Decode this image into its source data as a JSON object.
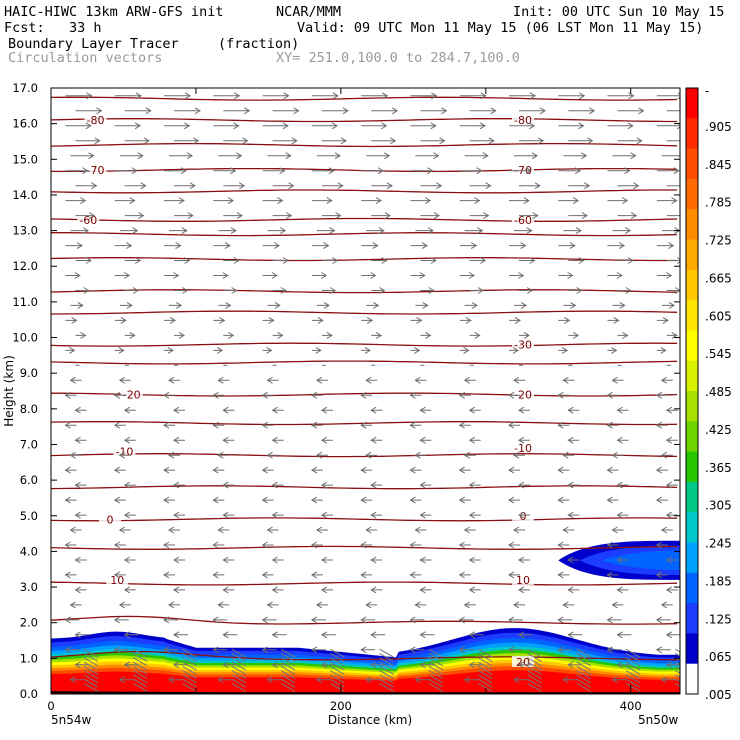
{
  "header": {
    "model": "HAIC-HIWC 13km ARW-GFS init",
    "org": "NCAR/MMM",
    "init": "Init: 00 UTC Sun 10 May 15",
    "fcst": "Fcst:   33 h",
    "valid": "Valid: 09 UTC Mon 11 May 15 (06 LST Mon 11 May 15)",
    "field": "Boundary Layer Tracer",
    "units": "(fraction)",
    "vectors": "Circulation vectors",
    "xy": "XY= 251.0,100.0 to 284.7,100.0"
  },
  "chart_data": {
    "type": "heatmap",
    "ylabel": "Height (km)",
    "xlabel": "Distance (km)",
    "ylim": [
      0,
      17
    ],
    "xlim": [
      0,
      434
    ],
    "y_ticks": [
      "0.0",
      "1.0",
      "2.0",
      "3.0",
      "4.0",
      "5.0",
      "6.0",
      "7.0",
      "8.0",
      "9.0",
      "10.0",
      "11.0",
      "12.0",
      "13.0",
      "14.0",
      "15.0",
      "16.0",
      "17.0"
    ],
    "x_ticks": [
      "0",
      "200",
      "400"
    ],
    "x_end_labels": {
      "left": "5n54w",
      "right": "5n50w"
    },
    "colorbar": {
      "labels": [
        "-",
        ".905",
        ".845",
        ".785",
        ".725",
        ".665",
        ".605",
        ".545",
        ".485",
        ".425",
        ".365",
        ".305",
        ".245",
        ".185",
        ".125",
        ".065",
        ".005"
      ],
      "colors": [
        "#ff0000",
        "#ff2a00",
        "#ff4d00",
        "#ff6a00",
        "#ff8c00",
        "#ffaa00",
        "#ffc800",
        "#ffe600",
        "#ffff00",
        "#d8f000",
        "#a8e000",
        "#6ed400",
        "#28c800",
        "#00c886",
        "#00c8c8",
        "#00a0ff",
        "#0064ff",
        "#1c3cff",
        "#0000cd",
        "#ffffff"
      ]
    },
    "isotherm_labels": [
      {
        "value": "-80",
        "x": 30,
        "y": 16.1
      },
      {
        "value": "-80",
        "x": 325,
        "y": 16.1
      },
      {
        "value": "-70",
        "x": 30,
        "y": 14.7
      },
      {
        "value": "-70",
        "x": 325,
        "y": 14.7
      },
      {
        "value": "-60",
        "x": 25,
        "y": 13.3
      },
      {
        "value": "-60",
        "x": 325,
        "y": 13.3
      },
      {
        "value": "-30",
        "x": 325,
        "y": 9.8
      },
      {
        "value": "-20",
        "x": 55,
        "y": 8.4
      },
      {
        "value": "-20",
        "x": 325,
        "y": 8.4
      },
      {
        "value": "-10",
        "x": 50,
        "y": 6.8
      },
      {
        "value": "-10",
        "x": 325,
        "y": 6.9
      },
      {
        "value": "0",
        "x": 40,
        "y": 4.9
      },
      {
        "value": "0",
        "x": 325,
        "y": 5.0
      },
      {
        "value": "10",
        "x": 45,
        "y": 3.2
      },
      {
        "value": "10",
        "x": 325,
        "y": 3.2
      },
      {
        "value": "20",
        "x": 325,
        "y": 0.9
      }
    ]
  }
}
